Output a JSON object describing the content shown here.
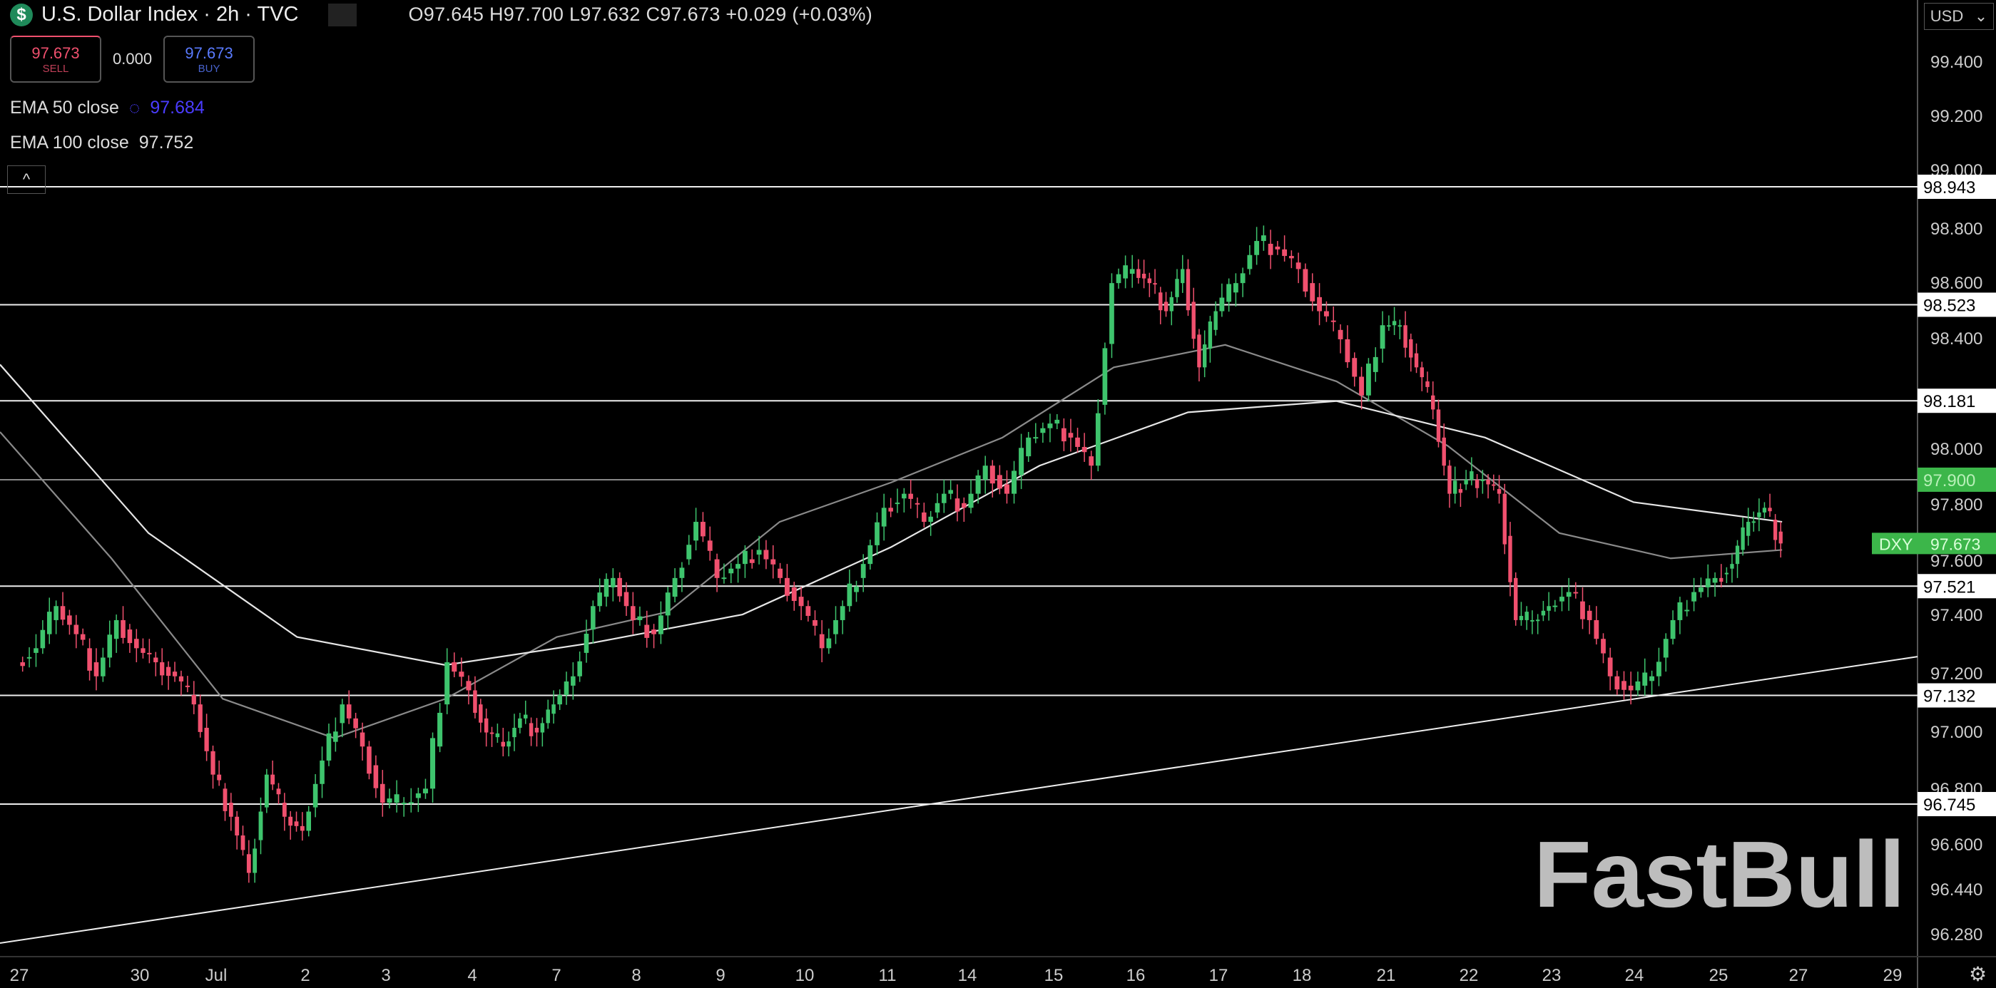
{
  "header": {
    "logo_icon": "dollar-sign-icon",
    "title": "U.S. Dollar Index · 2h · TVC",
    "ohlc": "O97.645  H97.700  L97.632  C97.673  +0.029 (+0.03%)"
  },
  "trade": {
    "sell_price": "97.673",
    "sell_label": "SELL",
    "spread": "0.000",
    "buy_price": "97.673",
    "buy_label": "BUY"
  },
  "indicators": [
    {
      "label": "EMA 50 close",
      "value": "97.684"
    },
    {
      "label": "EMA 100 close",
      "value": "97.752"
    }
  ],
  "collapse_icon": "chevron-up-icon",
  "currency": "USD",
  "watermark": "FastBull",
  "colors": {
    "up": "#3ec46d",
    "down": "#f0506e",
    "ema50": "#8a8a8a",
    "ema100": "#e6e6e6",
    "current": "#3cb64a"
  },
  "chart_data": {
    "type": "candlestick",
    "ylim": [
      96.2,
      99.5
    ],
    "y_ticks": [
      "99.400",
      "99.200",
      "99.000",
      "98.800",
      "98.600",
      "98.400",
      "98.000",
      "97.800",
      "97.600",
      "97.400",
      "97.200",
      "97.000",
      "96.800",
      "96.600",
      "96.440",
      "96.280"
    ],
    "x_ticks": [
      "27",
      "30",
      "Jul",
      "2",
      "3",
      "4",
      "7",
      "8",
      "9",
      "10",
      "11",
      "14",
      "15",
      "16",
      "17",
      "18",
      "21",
      "22",
      "23",
      "24",
      "25",
      "27",
      "29"
    ],
    "days": [
      {
        "label": "27",
        "closes": [
          97.3,
          97.45,
          97.35,
          97.2,
          97.4,
          97.3
        ]
      },
      {
        "label": "30",
        "closes": [
          97.25,
          97.2,
          97.1,
          96.85
        ]
      },
      {
        "label": "Jul",
        "closes": [
          96.7,
          96.5,
          96.85,
          96.7,
          96.65
        ]
      },
      {
        "label": "2",
        "closes": [
          96.9,
          97.1,
          96.95,
          96.75
        ]
      },
      {
        "label": "3",
        "closes": [
          96.75,
          96.8,
          97.25,
          97.15
        ]
      },
      {
        "label": "4",
        "closes": [
          97.0,
          96.95,
          97.05,
          97.0,
          97.1
        ]
      },
      {
        "label": "7",
        "closes": [
          97.2,
          97.45,
          97.55,
          97.4
        ]
      },
      {
        "label": "8",
        "closes": [
          97.35,
          97.55,
          97.75,
          97.55
        ]
      },
      {
        "label": "9",
        "closes": [
          97.6,
          97.65,
          97.55,
          97.45
        ]
      },
      {
        "label": "10",
        "closes": [
          97.3,
          97.45,
          97.6,
          97.8
        ]
      },
      {
        "label": "11",
        "closes": [
          97.85,
          97.75,
          97.85,
          97.8
        ]
      },
      {
        "label": "14",
        "closes": [
          97.95,
          97.85,
          98.05,
          98.1
        ]
      },
      {
        "label": "15",
        "closes": [
          98.05,
          97.95,
          98.6,
          98.65
        ]
      },
      {
        "label": "16",
        "closes": [
          98.6,
          98.5,
          98.65,
          98.3,
          98.5
        ]
      },
      {
        "label": "17",
        "closes": [
          98.6,
          98.75,
          98.72,
          98.65
        ]
      },
      {
        "label": "18",
        "closes": [
          98.5,
          98.4,
          98.2,
          98.45
        ]
      },
      {
        "label": "21",
        "closes": [
          98.45,
          98.3,
          98.15,
          97.85,
          97.9
        ]
      },
      {
        "label": "22",
        "closes": [
          97.9,
          97.85,
          97.4,
          97.4,
          97.45
        ]
      },
      {
        "label": "23",
        "closes": [
          97.5,
          97.4,
          97.2,
          97.15
        ]
      },
      {
        "label": "24",
        "closes": [
          97.2,
          97.4,
          97.5,
          97.55
        ]
      },
      {
        "label": "25",
        "closes": [
          97.6,
          97.75,
          97.8,
          97.673
        ]
      }
    ],
    "ema50": [
      98.07,
      97.62,
      97.12,
      96.98,
      97.12,
      97.34,
      97.43,
      97.75,
      97.89,
      98.05,
      98.3,
      98.38,
      98.25,
      98.02,
      97.71,
      97.62,
      97.65
    ],
    "ema100": [
      98.31,
      97.71,
      97.34,
      97.24,
      97.32,
      97.42,
      97.66,
      97.95,
      98.14,
      98.18,
      98.05,
      97.82,
      97.75
    ],
    "levels": [
      "98.943",
      "98.523",
      "98.181",
      "97.900",
      "97.521",
      "97.132",
      "96.745"
    ],
    "trendline": {
      "from": 96.25,
      "to": 97.27
    },
    "current": {
      "symbol": "DXY",
      "value": "97.673"
    }
  }
}
